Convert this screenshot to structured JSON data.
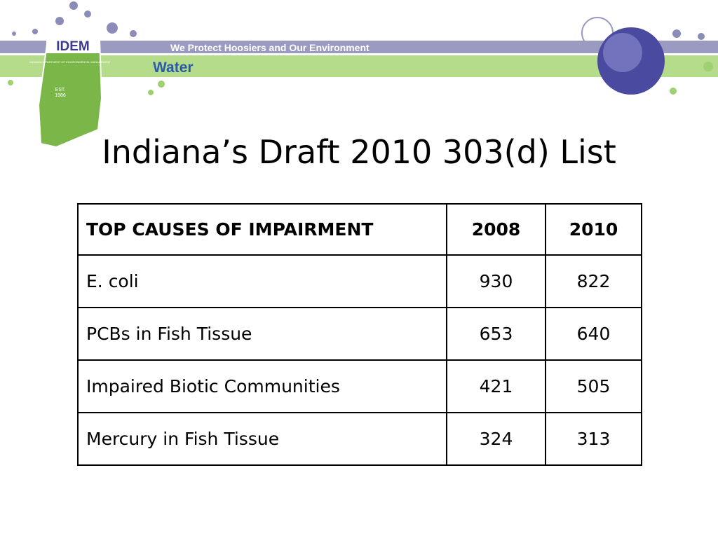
{
  "header": {
    "logo": "IDEM",
    "agency": "INDIANA DEPARTMENT OF ENVIRONMENTAL MANAGEMENT",
    "est": "EST.",
    "year": "1986",
    "slogan": "We Protect Hoosiers and Our Environment",
    "section": "Water"
  },
  "title": "Indiana’s Draft 2010 303(d) List",
  "table": {
    "columns": [
      "TOP CAUSES OF IMPAIRMENT",
      "2008",
      "2010"
    ],
    "rows": [
      [
        "E. coli",
        930,
        822
      ],
      [
        "PCBs in Fish Tissue",
        653,
        640
      ],
      [
        "Impaired Biotic Communities",
        421,
        505
      ],
      [
        "Mercury in Fish Tissue",
        324,
        313
      ]
    ]
  }
}
